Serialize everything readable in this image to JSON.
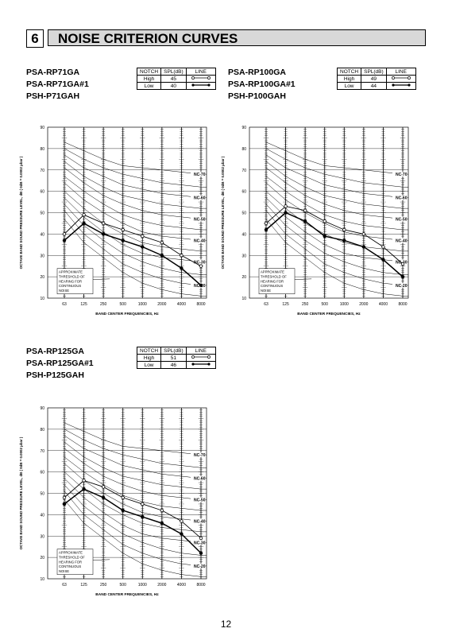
{
  "section": {
    "number": "6",
    "title": "NOISE CRITERION CURVES"
  },
  "legend_headers": [
    "NOTCH",
    "SPL(dB)",
    "LINE"
  ],
  "page_number": "12",
  "chart_data": [
    {
      "type": "line",
      "models": [
        "PSA-RP71GA",
        "PSA-RP71GA#1",
        "PSH-P71GAH"
      ],
      "notch_rows": [
        {
          "notch": "High",
          "spl": "45",
          "marker": "open-circle"
        },
        {
          "notch": "Low",
          "spl": "40",
          "marker": "filled-circle"
        }
      ],
      "x": [
        "63",
        "125",
        "250",
        "500",
        "1000",
        "2000",
        "4000",
        "8000"
      ],
      "xlabel": "BAND CENTER FREQUENCIES, Hz",
      "ylabel": "OCTAVE BAND SOUND PRESSURE LEVEL, dB ( 0dB = 0.0002 μbar )",
      "ylim": [
        10,
        90
      ],
      "yticks": [
        10,
        20,
        30,
        40,
        50,
        60,
        70,
        80,
        90
      ],
      "nc_labels": [
        "NC-70",
        "NC-60",
        "NC-50",
        "NC-40",
        "NC-30",
        "NC-20"
      ],
      "threshold_note": [
        "APPROXIMATE",
        "THRESHOLD OF",
        "HEARING FOR",
        "CONTINUOUS",
        "NOISE"
      ],
      "series": [
        {
          "name": "High",
          "marker": "open-circle",
          "values": [
            40,
            49,
            45,
            42,
            39,
            36,
            30,
            25
          ]
        },
        {
          "name": "Low",
          "marker": "filled-circle",
          "values": [
            37,
            45,
            40,
            37,
            34,
            30,
            24,
            16
          ]
        }
      ]
    },
    {
      "type": "line",
      "models": [
        "PSA-RP100GA",
        "PSA-RP100GA#1",
        "PSH-P100GAH"
      ],
      "notch_rows": [
        {
          "notch": "High",
          "spl": "49",
          "marker": "open-circle"
        },
        {
          "notch": "Low",
          "spl": "44",
          "marker": "filled-circle"
        }
      ],
      "x": [
        "63",
        "125",
        "250",
        "500",
        "1000",
        "2000",
        "4000",
        "8000"
      ],
      "xlabel": "BAND CENTER FREQUENCIES, Hz",
      "ylabel": "OCTAVE BAND SOUND PRESSURE LEVEL, dB ( 0dB = 0.0002 μbar )",
      "ylim": [
        10,
        90
      ],
      "yticks": [
        10,
        20,
        30,
        40,
        50,
        60,
        70,
        80,
        90
      ],
      "nc_labels": [
        "NC-70",
        "NC-60",
        "NC-50",
        "NC-40",
        "NC-30",
        "NC-20"
      ],
      "threshold_note": [
        "APPROXIMATE",
        "THRESHOLD OF",
        "HEARING FOR",
        "CONTINUOUS",
        "NOISE"
      ],
      "series": [
        {
          "name": "High",
          "marker": "open-circle",
          "values": [
            45,
            53,
            51,
            46,
            42,
            40,
            34,
            26
          ]
        },
        {
          "name": "Low",
          "marker": "filled-circle",
          "values": [
            42,
            50,
            46,
            39,
            37,
            34,
            28,
            20
          ]
        }
      ]
    },
    {
      "type": "line",
      "models": [
        "PSA-RP125GA",
        "PSA-RP125GA#1",
        "PSH-P125GAH"
      ],
      "notch_rows": [
        {
          "notch": "High",
          "spl": "51",
          "marker": "open-circle"
        },
        {
          "notch": "Low",
          "spl": "46",
          "marker": "filled-circle"
        }
      ],
      "x": [
        "63",
        "125",
        "250",
        "500",
        "1000",
        "2000",
        "4000",
        "8000"
      ],
      "xlabel": "BAND CENTER FREQUENCIES, Hz",
      "ylabel": "OCTAVE BAND SOUND PRESSURE LEVEL, dB ( 0dB = 0.0002 μbar )",
      "ylim": [
        10,
        90
      ],
      "yticks": [
        10,
        20,
        30,
        40,
        50,
        60,
        70,
        80,
        90
      ],
      "nc_labels": [
        "NC-70",
        "NC-60",
        "NC-50",
        "NC-40",
        "NC-30",
        "NC-20"
      ],
      "threshold_note": [
        "APPROXIMATE",
        "THRESHOLD OF",
        "HEARING FOR",
        "CONTINUOUS",
        "NOISE"
      ],
      "series": [
        {
          "name": "High",
          "marker": "open-circle",
          "values": [
            48,
            56,
            53,
            48,
            45,
            42,
            37,
            29
          ]
        },
        {
          "name": "Low",
          "marker": "filled-circle",
          "values": [
            45,
            52,
            48,
            42,
            39,
            36,
            31,
            22
          ]
        }
      ]
    }
  ]
}
